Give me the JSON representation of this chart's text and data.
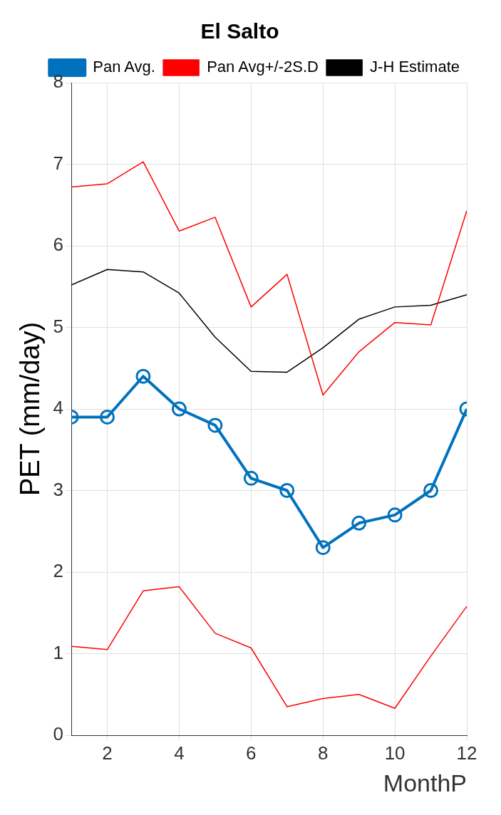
{
  "chart_data": {
    "type": "line",
    "title": "El Salto",
    "xlabel": "MonthP",
    "ylabel": "PET (mm/day)",
    "x": [
      1,
      2,
      3,
      4,
      5,
      6,
      7,
      8,
      9,
      10,
      11,
      12
    ],
    "series": [
      {
        "name": "Pan Avg.",
        "color": "#0072bd",
        "marker": "circle",
        "values": [
          3.9,
          3.9,
          4.4,
          4.0,
          3.8,
          3.15,
          3.0,
          2.3,
          2.6,
          2.7,
          3.0,
          4.0
        ]
      },
      {
        "name": "Pan Avg+/-2S.D",
        "color": "#ff0000",
        "marker": "none",
        "values": [
          6.72,
          6.76,
          7.03,
          6.18,
          6.35,
          5.25,
          5.65,
          4.17,
          4.7,
          5.06,
          5.03,
          6.43
        ]
      },
      {
        "color": "#ff0000",
        "marker": "none",
        "values": [
          1.09,
          1.05,
          1.77,
          1.82,
          1.25,
          1.07,
          0.35,
          0.45,
          0.5,
          0.33,
          0.97,
          1.58
        ]
      },
      {
        "name": "J-H Estimate",
        "color": "#000000",
        "marker": "none",
        "values": [
          5.52,
          5.71,
          5.68,
          5.42,
          4.88,
          4.46,
          4.45,
          4.75,
          5.1,
          5.25,
          5.27,
          5.4
        ]
      }
    ],
    "xlim": [
      1,
      12
    ],
    "xticks": [
      2,
      4,
      6,
      8,
      10,
      12
    ],
    "ylim": [
      0,
      8
    ],
    "yticks": [
      0,
      1,
      2,
      3,
      4,
      5,
      6,
      7,
      8
    ],
    "grid": true,
    "legend": "top right",
    "line_style": "solid"
  }
}
